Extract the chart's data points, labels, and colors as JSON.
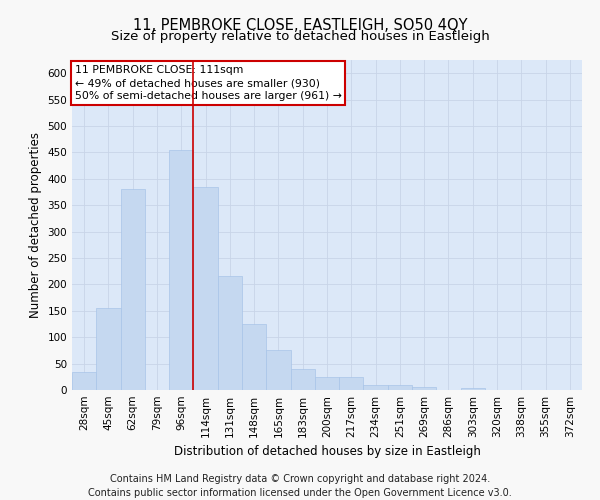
{
  "title": "11, PEMBROKE CLOSE, EASTLEIGH, SO50 4QY",
  "subtitle": "Size of property relative to detached houses in Eastleigh",
  "xlabel": "Distribution of detached houses by size in Eastleigh",
  "ylabel": "Number of detached properties",
  "footer_line1": "Contains HM Land Registry data © Crown copyright and database right 2024.",
  "footer_line2": "Contains public sector information licensed under the Open Government Licence v3.0.",
  "bar_labels": [
    "28sqm",
    "45sqm",
    "62sqm",
    "79sqm",
    "96sqm",
    "114sqm",
    "131sqm",
    "148sqm",
    "165sqm",
    "183sqm",
    "200sqm",
    "217sqm",
    "234sqm",
    "251sqm",
    "269sqm",
    "286sqm",
    "303sqm",
    "320sqm",
    "338sqm",
    "355sqm",
    "372sqm"
  ],
  "bar_values": [
    35,
    155,
    380,
    0,
    455,
    385,
    215,
    125,
    75,
    40,
    25,
    25,
    10,
    10,
    5,
    0,
    3,
    0,
    0,
    0,
    0
  ],
  "bar_color": "#c5d8f0",
  "bar_edgecolor": "#a8c4e8",
  "vline_x": 5.0,
  "vline_color": "#cc0000",
  "annotation_title": "11 PEMBROKE CLOSE: 111sqm",
  "annotation_line1": "← 49% of detached houses are smaller (930)",
  "annotation_line2": "50% of semi-detached houses are larger (961) →",
  "annotation_box_facecolor": "#ffffff",
  "annotation_box_edgecolor": "#cc0000",
  "ylim": [
    0,
    625
  ],
  "yticks": [
    0,
    50,
    100,
    150,
    200,
    250,
    300,
    350,
    400,
    450,
    500,
    550,
    600
  ],
  "grid_color": "#c8d4e8",
  "plot_bg_color": "#dce8f8",
  "fig_bg_color": "#f8f8f8",
  "title_fontsize": 10.5,
  "subtitle_fontsize": 9.5,
  "axis_label_fontsize": 8.5,
  "tick_fontsize": 7.5,
  "annotation_fontsize": 7.8,
  "footer_fontsize": 7.0
}
